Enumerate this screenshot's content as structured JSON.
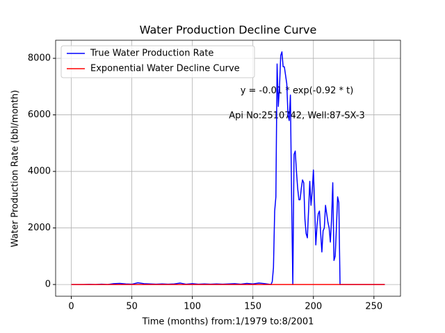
{
  "chart_data": {
    "type": "line",
    "title": "Water Production Decline Curve",
    "x_label": "Time (months) from:1/1979 to:8/2001",
    "y_label": "Water Production Rate (bbl/month)",
    "annotations": [
      "y = -0.01 * exp(-0.92 * t)",
      "Api No:2510742, Well:87-SX-3"
    ],
    "series": [
      {
        "name": "True Water Production Rate",
        "color": "#0000ff",
        "x": [
          0,
          5,
          10,
          15,
          20,
          25,
          30,
          35,
          40,
          45,
          50,
          55,
          60,
          65,
          70,
          75,
          80,
          85,
          90,
          95,
          100,
          105,
          110,
          115,
          120,
          125,
          130,
          135,
          140,
          145,
          150,
          155,
          160,
          165,
          166,
          167,
          168,
          169,
          170,
          171,
          172,
          173,
          174,
          175,
          176,
          177,
          178,
          179,
          180,
          181,
          182,
          183,
          184,
          185,
          186,
          187,
          188,
          189,
          190,
          191,
          192,
          193,
          194,
          195,
          196,
          197,
          198,
          199,
          200,
          201,
          202,
          203,
          204,
          205,
          206,
          207,
          208,
          209,
          210,
          211,
          212,
          213,
          214,
          215,
          216,
          217,
          218,
          219,
          220,
          221,
          222,
          229,
          235,
          241,
          247,
          253,
          259
        ],
        "values": [
          0,
          0,
          0,
          5,
          0,
          10,
          0,
          30,
          40,
          20,
          10,
          60,
          30,
          20,
          10,
          20,
          10,
          20,
          50,
          10,
          30,
          10,
          20,
          10,
          20,
          10,
          20,
          30,
          10,
          40,
          20,
          50,
          30,
          0,
          100,
          600,
          2600,
          3100,
          7800,
          6300,
          7000,
          8100,
          8230,
          7700,
          7700,
          7400,
          7100,
          6000,
          5800,
          6700,
          3000,
          0,
          4600,
          4720,
          4000,
          3400,
          3000,
          3000,
          3400,
          3700,
          3600,
          2300,
          1800,
          1650,
          2600,
          3650,
          2800,
          3300,
          4050,
          2800,
          1400,
          2100,
          2500,
          2600,
          1800,
          1150,
          1900,
          2000,
          2800,
          2500,
          2200,
          2000,
          1500,
          2300,
          3600,
          850,
          1000,
          2000,
          3100,
          2900,
          0,
          0,
          0,
          0,
          0,
          0,
          0
        ]
      },
      {
        "name": "Exponential Water Decline Curve",
        "color": "#ff0000",
        "x": [
          0,
          259
        ],
        "values": [
          0,
          0
        ]
      }
    ],
    "xlim": [
      -12.95,
      271.95
    ],
    "xticks": [
      0,
      50,
      100,
      150,
      200,
      250
    ],
    "ylim": [
      -415,
      8640
    ],
    "yticks": [
      0,
      2000,
      4000,
      6000,
      8000
    ],
    "grid": true,
    "legend": "upper left"
  }
}
